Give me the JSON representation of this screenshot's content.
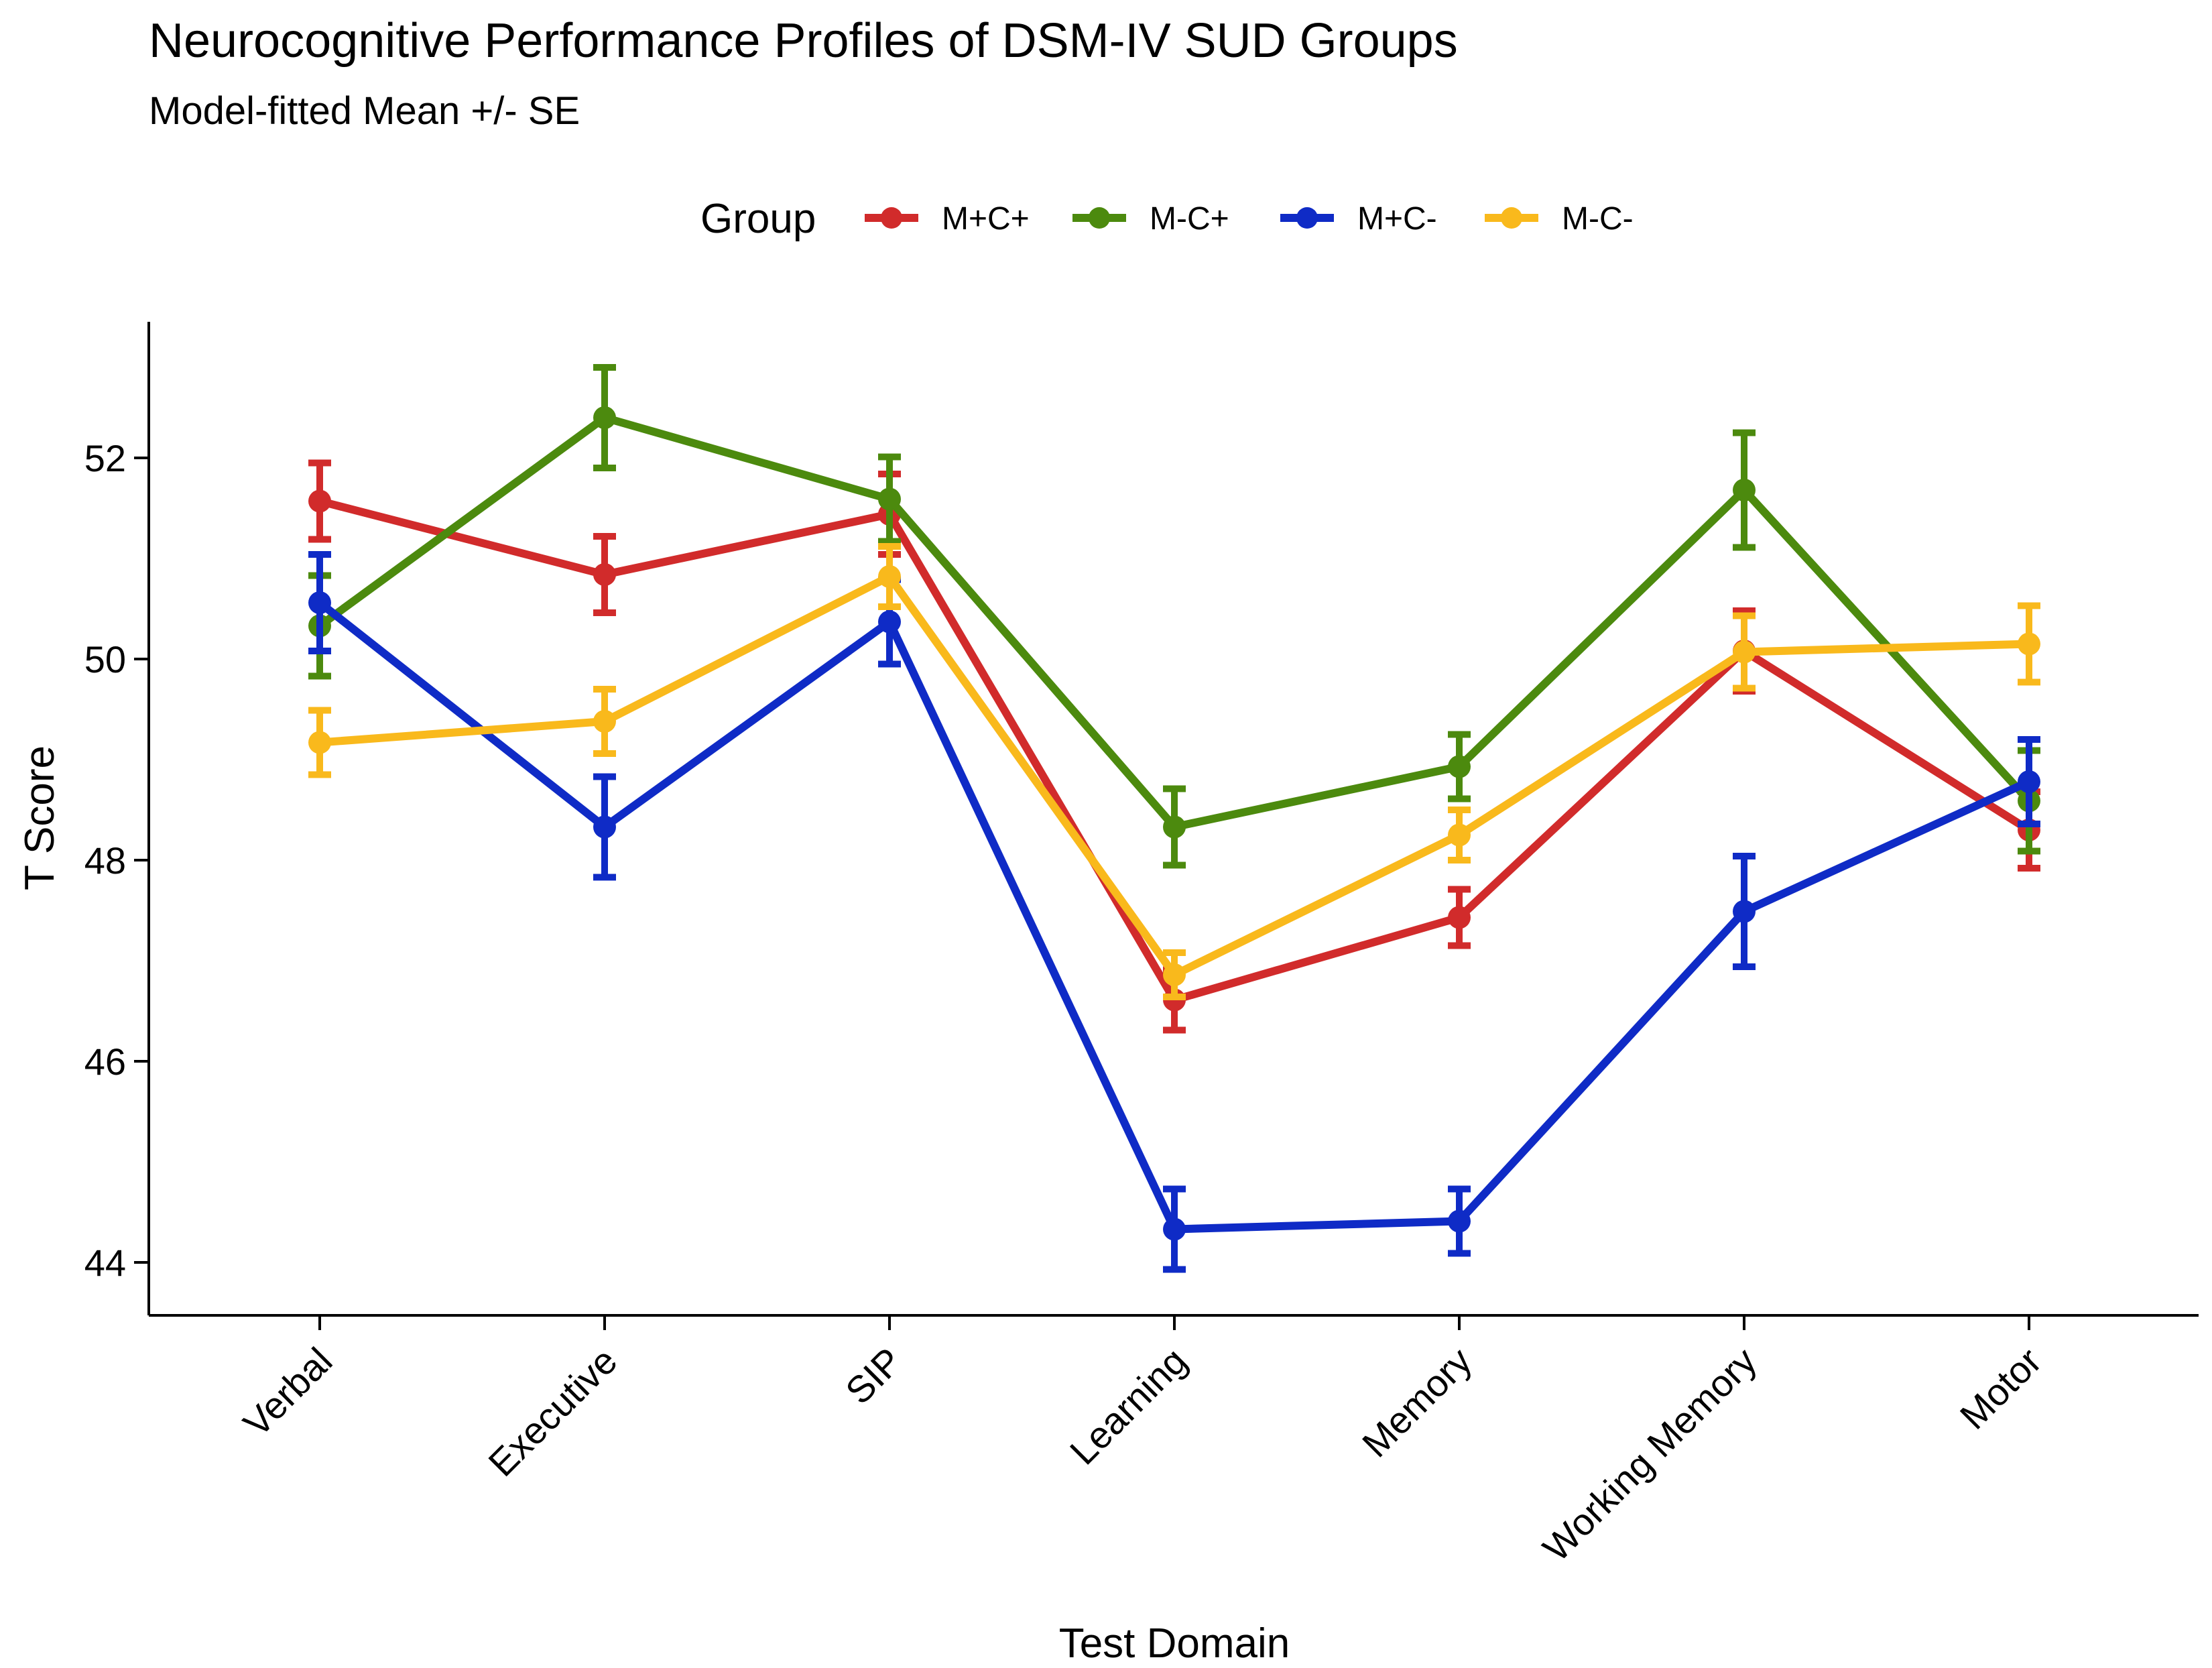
{
  "chart_data": {
    "type": "line",
    "title": "Neurocognitive Performance Profiles of DSM-IV SUD Groups",
    "subtitle": "Model-fitted Mean +/- SE",
    "xlabel": "Test Domain",
    "ylabel": "T Score",
    "ylim": [
      43.5,
      53.4
    ],
    "yticks": [
      44,
      46,
      48,
      50,
      52
    ],
    "grid": false,
    "legend": {
      "title": "Group",
      "position": "top"
    },
    "categories": [
      "Verbal",
      "Executive",
      "SIP",
      "Learning",
      "Memory",
      "Working Memory",
      "Motor"
    ],
    "series": [
      {
        "name": "M+C+",
        "color": "#D12B2B",
        "values": [
          51.57,
          50.84,
          51.44,
          46.61,
          47.43,
          50.08,
          48.3
        ],
        "se": [
          0.38,
          0.38,
          0.4,
          0.3,
          0.28,
          0.4,
          0.38
        ]
      },
      {
        "name": "M-C+",
        "color": "#4C8A0E",
        "values": [
          50.33,
          52.4,
          51.59,
          48.33,
          48.93,
          51.68,
          48.59
        ],
        "se": [
          0.5,
          0.5,
          0.42,
          0.38,
          0.32,
          0.57,
          0.5
        ]
      },
      {
        "name": "M+C-",
        "color": "#0F2BC6",
        "values": [
          50.56,
          48.33,
          50.37,
          44.33,
          44.41,
          47.49,
          48.78
        ],
        "se": [
          0.48,
          0.5,
          0.42,
          0.4,
          0.32,
          0.55,
          0.42
        ]
      },
      {
        "name": "M-C-",
        "color": "#F9B91C",
        "values": [
          49.17,
          49.38,
          50.82,
          46.86,
          48.25,
          50.07,
          50.15
        ],
        "se": [
          0.32,
          0.32,
          0.3,
          0.22,
          0.25,
          0.36,
          0.38
        ]
      }
    ]
  }
}
